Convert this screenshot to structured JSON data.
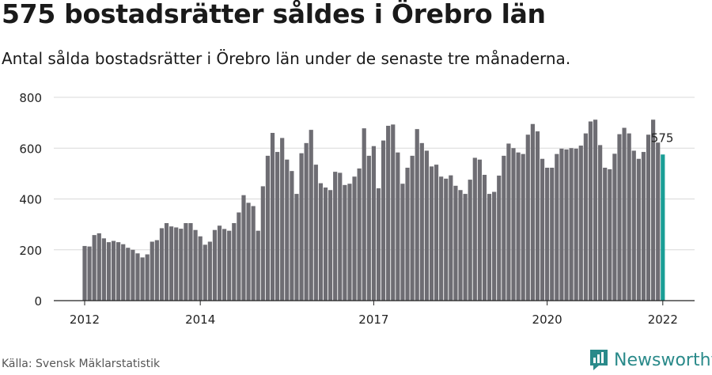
{
  "title": "575 bostadsrätter såldes i Örebro län",
  "subtitle": "Antal sålda bostadsrätter i Örebro län under de senaste tre månaderna.",
  "source": "Källa: Svensk Mäklarstatistik",
  "brand": "Newsworthy",
  "colors": {
    "bar": "#6e6d73",
    "highlight": "#1a9e96",
    "brand": "#2a8a8a"
  },
  "chart_data": {
    "type": "bar",
    "x_start": "2012-01",
    "x_tick_labels": [
      "2012",
      "2014",
      "2017",
      "2020",
      "2022"
    ],
    "x_ticks": [
      0,
      24,
      60,
      96,
      120
    ],
    "ylim": [
      0,
      800
    ],
    "y_ticks": [
      0,
      200,
      400,
      600,
      800
    ],
    "grid": true,
    "values": [
      215,
      213,
      258,
      265,
      245,
      230,
      235,
      230,
      222,
      208,
      200,
      186,
      170,
      182,
      232,
      238,
      285,
      305,
      292,
      288,
      283,
      305,
      305,
      278,
      253,
      220,
      232,
      278,
      295,
      282,
      275,
      305,
      347,
      415,
      385,
      372,
      275,
      450,
      570,
      660,
      585,
      640,
      555,
      510,
      420,
      580,
      620,
      672,
      535,
      462,
      445,
      435,
      507,
      503,
      455,
      460,
      488,
      520,
      678,
      570,
      608,
      442,
      630,
      688,
      693,
      583,
      460,
      523,
      570,
      675,
      620,
      590,
      528,
      535,
      488,
      480,
      493,
      452,
      435,
      420,
      476,
      562,
      555,
      495,
      420,
      428,
      492,
      570,
      618,
      600,
      583,
      577,
      653,
      695,
      666,
      558,
      523,
      523,
      577,
      598,
      595,
      600,
      598,
      610,
      658,
      705,
      712,
      612,
      523,
      517,
      578,
      655,
      680,
      658,
      590,
      558,
      585,
      653,
      712,
      622,
      575
    ],
    "highlight_label": "575"
  }
}
